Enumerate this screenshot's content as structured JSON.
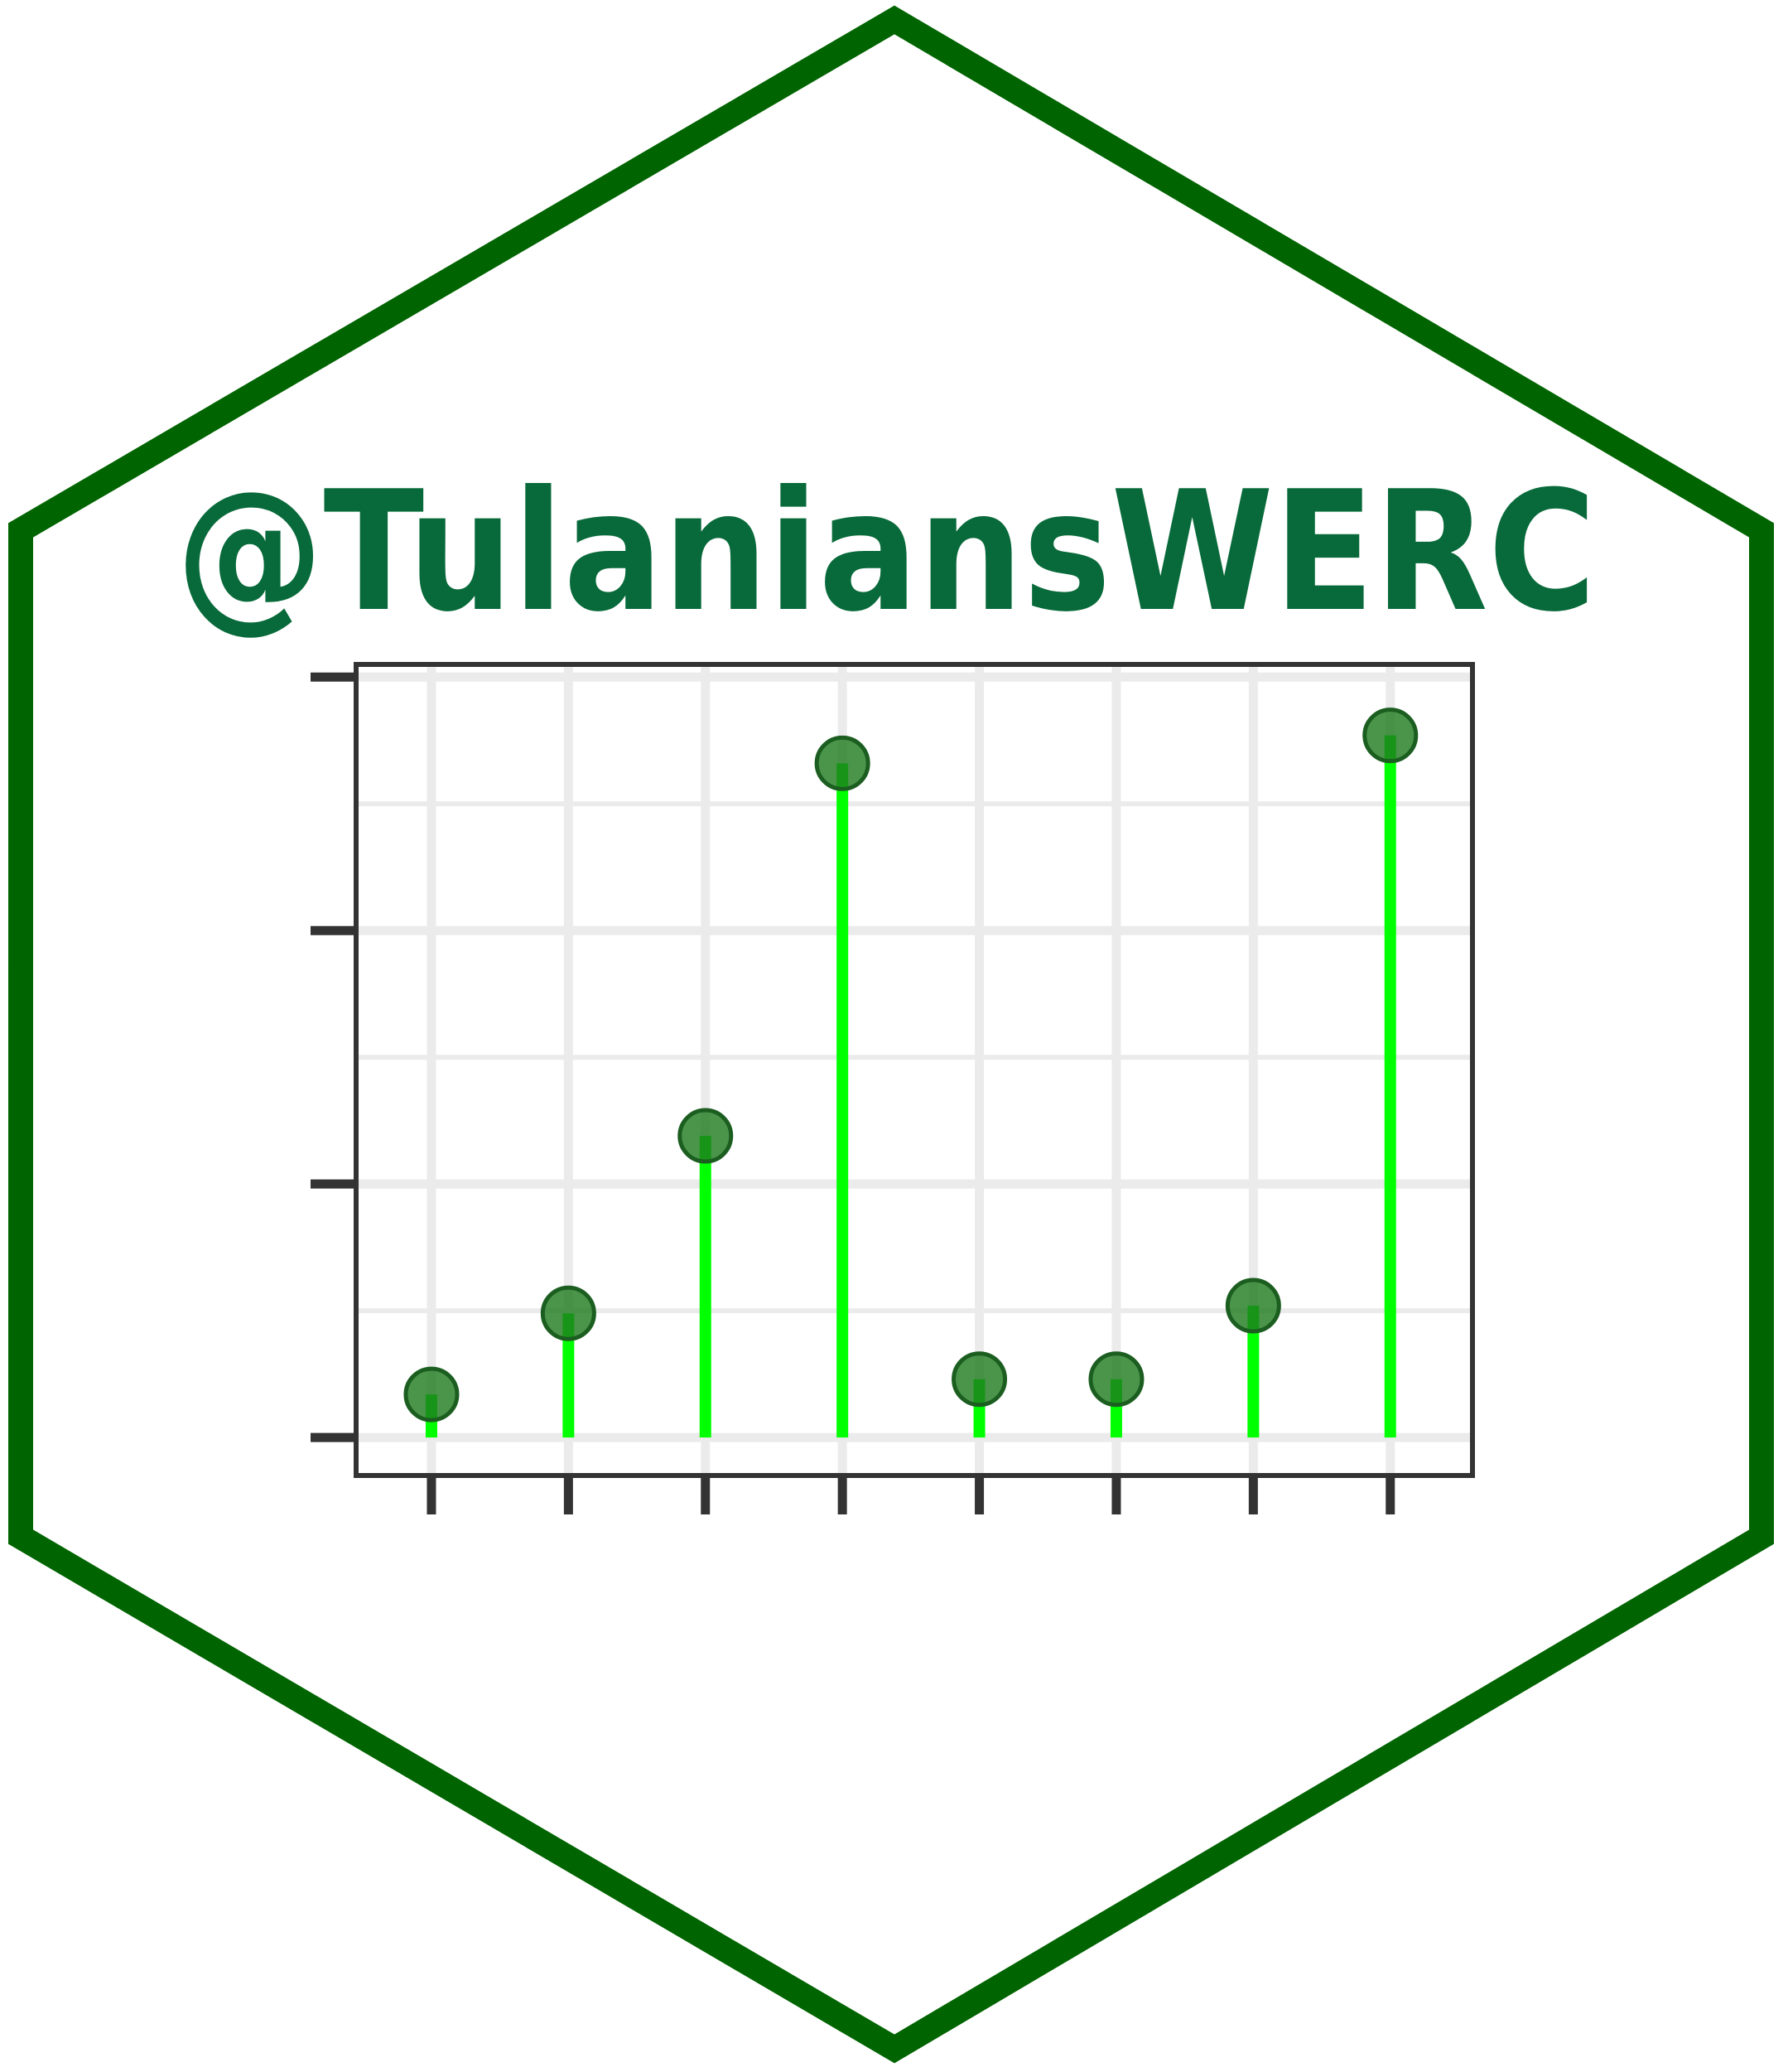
{
  "sticker": {
    "handle": "@TulaniansWERC",
    "text_color": "#086A3A",
    "border_color": "#006400",
    "background": "#FFFFFF"
  },
  "chart_data": {
    "type": "lollipop",
    "title": "",
    "xlabel": "",
    "ylabel": "",
    "x": [
      1,
      2,
      3,
      4,
      5,
      6,
      7,
      8
    ],
    "values": [
      0.17,
      0.49,
      1.19,
      2.66,
      0.23,
      0.23,
      0.52,
      2.77
    ],
    "xlim": [
      0.45,
      8.6
    ],
    "ylim": [
      -0.15,
      3.05
    ],
    "yticks": [
      0,
      1,
      2,
      3
    ],
    "y_minor_gridlines": [
      0.5,
      1.5,
      2.5
    ],
    "tick_labels_shown": false,
    "grid": true,
    "legend": "none",
    "stem_color": "#00FF00",
    "point_fill": "#1E7A1E",
    "point_stroke": "#1B5E20",
    "grid_color": "#EBEBEB",
    "frame_color": "#333333"
  }
}
